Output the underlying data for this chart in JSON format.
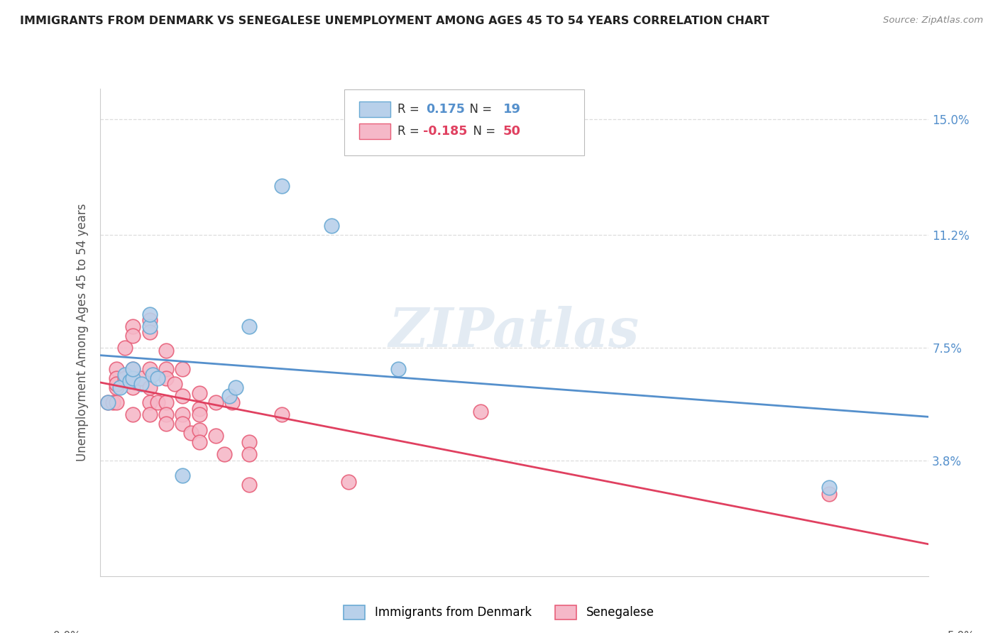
{
  "title": "IMMIGRANTS FROM DENMARK VS SENEGALESE UNEMPLOYMENT AMONG AGES 45 TO 54 YEARS CORRELATION CHART",
  "source": "Source: ZipAtlas.com",
  "ylabel": "Unemployment Among Ages 45 to 54 years",
  "watermark": "ZIPatlas",
  "xlim": [
    0.0,
    0.05
  ],
  "ylim": [
    0.0,
    0.16
  ],
  "ytick_vals": [
    0.038,
    0.075,
    0.112,
    0.15
  ],
  "ytick_labels": [
    "3.8%",
    "7.5%",
    "11.2%",
    "15.0%"
  ],
  "legend_blue_R": "0.175",
  "legend_blue_N": "19",
  "legend_pink_R": "-0.185",
  "legend_pink_N": "50",
  "blue_fill": "#b8d0ea",
  "pink_fill": "#f5b8c8",
  "blue_edge": "#6aaad4",
  "pink_edge": "#e8607a",
  "blue_line": "#5590cc",
  "pink_line": "#e04060",
  "denmark_x": [
    0.0005,
    0.0012,
    0.0015,
    0.0018,
    0.002,
    0.002,
    0.0025,
    0.003,
    0.003,
    0.0032,
    0.0035,
    0.005,
    0.0078,
    0.0082,
    0.009,
    0.011,
    0.014,
    0.018,
    0.044
  ],
  "denmark_y": [
    0.057,
    0.062,
    0.066,
    0.064,
    0.065,
    0.068,
    0.063,
    0.082,
    0.086,
    0.066,
    0.065,
    0.033,
    0.059,
    0.062,
    0.082,
    0.128,
    0.115,
    0.068,
    0.029
  ],
  "senegal_x": [
    0.0005,
    0.0008,
    0.001,
    0.001,
    0.001,
    0.001,
    0.001,
    0.0015,
    0.0015,
    0.002,
    0.002,
    0.002,
    0.002,
    0.002,
    0.0025,
    0.003,
    0.003,
    0.003,
    0.003,
    0.003,
    0.003,
    0.0035,
    0.004,
    0.004,
    0.004,
    0.004,
    0.004,
    0.004,
    0.0045,
    0.005,
    0.005,
    0.005,
    0.005,
    0.0055,
    0.006,
    0.006,
    0.006,
    0.006,
    0.006,
    0.007,
    0.007,
    0.0075,
    0.008,
    0.009,
    0.009,
    0.009,
    0.011,
    0.015,
    0.023,
    0.044
  ],
  "senegal_y": [
    0.057,
    0.057,
    0.068,
    0.062,
    0.065,
    0.057,
    0.063,
    0.075,
    0.065,
    0.082,
    0.079,
    0.068,
    0.062,
    0.053,
    0.065,
    0.084,
    0.08,
    0.068,
    0.062,
    0.057,
    0.053,
    0.057,
    0.074,
    0.068,
    0.065,
    0.057,
    0.053,
    0.05,
    0.063,
    0.068,
    0.059,
    0.053,
    0.05,
    0.047,
    0.06,
    0.055,
    0.053,
    0.048,
    0.044,
    0.057,
    0.046,
    0.04,
    0.057,
    0.044,
    0.04,
    0.03,
    0.053,
    0.031,
    0.054,
    0.027
  ],
  "grid_color": "#dddddd",
  "bg_color": "#ffffff",
  "title_color": "#222222",
  "source_color": "#888888",
  "label_color": "#555555"
}
